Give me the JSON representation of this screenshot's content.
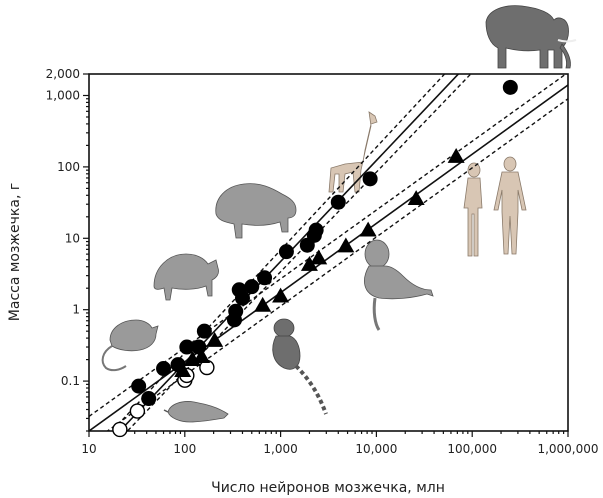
{
  "chart_data": {
    "type": "scatter",
    "title": "",
    "xlabel": "Число нейронов мозжечка, млн",
    "ylabel": "Масса мозжечка, г",
    "xscale": "log",
    "yscale": "log",
    "xlim": [
      10,
      1000000
    ],
    "ylim": [
      0.02,
      2000
    ],
    "x_ticks": [
      {
        "value": 10,
        "label": "10"
      },
      {
        "value": 100,
        "label": "100"
      },
      {
        "value": 1000,
        "label": "1,000"
      },
      {
        "value": 10000,
        "label": "10,000"
      },
      {
        "value": 100000,
        "label": "100,000"
      },
      {
        "value": 1000000,
        "label": "1,000,000"
      }
    ],
    "y_ticks": [
      {
        "value": 0.1,
        "label": "0.1"
      },
      {
        "value": 1,
        "label": "1"
      },
      {
        "value": 10,
        "label": "10"
      },
      {
        "value": 100,
        "label": "100"
      },
      {
        "value": 1000,
        "label": "1,000"
      },
      {
        "value": 2000,
        "label": "2,000"
      }
    ],
    "series": [
      {
        "name": "filled-circles",
        "marker": "circle-filled",
        "points": [
          [
            33,
            0.085
          ],
          [
            42,
            0.057
          ],
          [
            60,
            0.15
          ],
          [
            85,
            0.17
          ],
          [
            105,
            0.3
          ],
          [
            140,
            0.3
          ],
          [
            160,
            0.5
          ],
          [
            330,
            0.72
          ],
          [
            340,
            0.95
          ],
          [
            370,
            1.9
          ],
          [
            400,
            1.45
          ],
          [
            500,
            2.1
          ],
          [
            680,
            2.8
          ],
          [
            1150,
            6.5
          ],
          [
            1900,
            8.0
          ],
          [
            2250,
            11.0
          ],
          [
            2350,
            13.0
          ],
          [
            4000,
            32
          ],
          [
            8600,
            68
          ],
          [
            250000,
            1300
          ]
        ]
      },
      {
        "name": "open-circles",
        "marker": "circle-open",
        "points": [
          [
            21,
            0.021
          ],
          [
            32,
            0.038
          ],
          [
            100,
            0.103
          ],
          [
            105,
            0.12
          ],
          [
            170,
            0.155
          ]
        ]
      },
      {
        "name": "triangles",
        "marker": "triangle-filled",
        "points": [
          [
            95,
            0.14
          ],
          [
            120,
            0.2
          ],
          [
            150,
            0.22
          ],
          [
            205,
            0.37
          ],
          [
            650,
            1.15
          ],
          [
            1000,
            1.55
          ],
          [
            2000,
            4.3
          ],
          [
            2500,
            5.3
          ],
          [
            4800,
            7.8
          ],
          [
            8200,
            13.0
          ],
          [
            26000,
            36
          ],
          [
            68000,
            140
          ]
        ]
      }
    ],
    "regression_lines": [
      {
        "name": "fit-circles",
        "style": "solid",
        "from": [
          10,
          0.007
        ],
        "to": [
          100000,
          3200
        ]
      },
      {
        "name": "ci-circles-upper",
        "style": "dashed",
        "from": [
          10,
          0.009
        ],
        "to": [
          100000,
          5200
        ]
      },
      {
        "name": "ci-circles-lower",
        "style": "dashed",
        "from": [
          10,
          0.0055
        ],
        "to": [
          100000,
          2100
        ]
      },
      {
        "name": "fit-triangles",
        "style": "solid",
        "from": [
          10,
          0.02
        ],
        "to": [
          1000000,
          1400
        ]
      },
      {
        "name": "ci-triangles-upper",
        "style": "dashed",
        "from": [
          10,
          0.032
        ],
        "to": [
          1000000,
          2100
        ]
      },
      {
        "name": "ci-triangles-lower",
        "style": "dashed",
        "from": [
          10,
          0.013
        ],
        "to": [
          1000000,
          900
        ]
      }
    ],
    "illustrations": [
      "elephant",
      "giraffe",
      "capybara",
      "humans",
      "agouti",
      "macaque",
      "rat",
      "marmoset",
      "shrew"
    ]
  }
}
